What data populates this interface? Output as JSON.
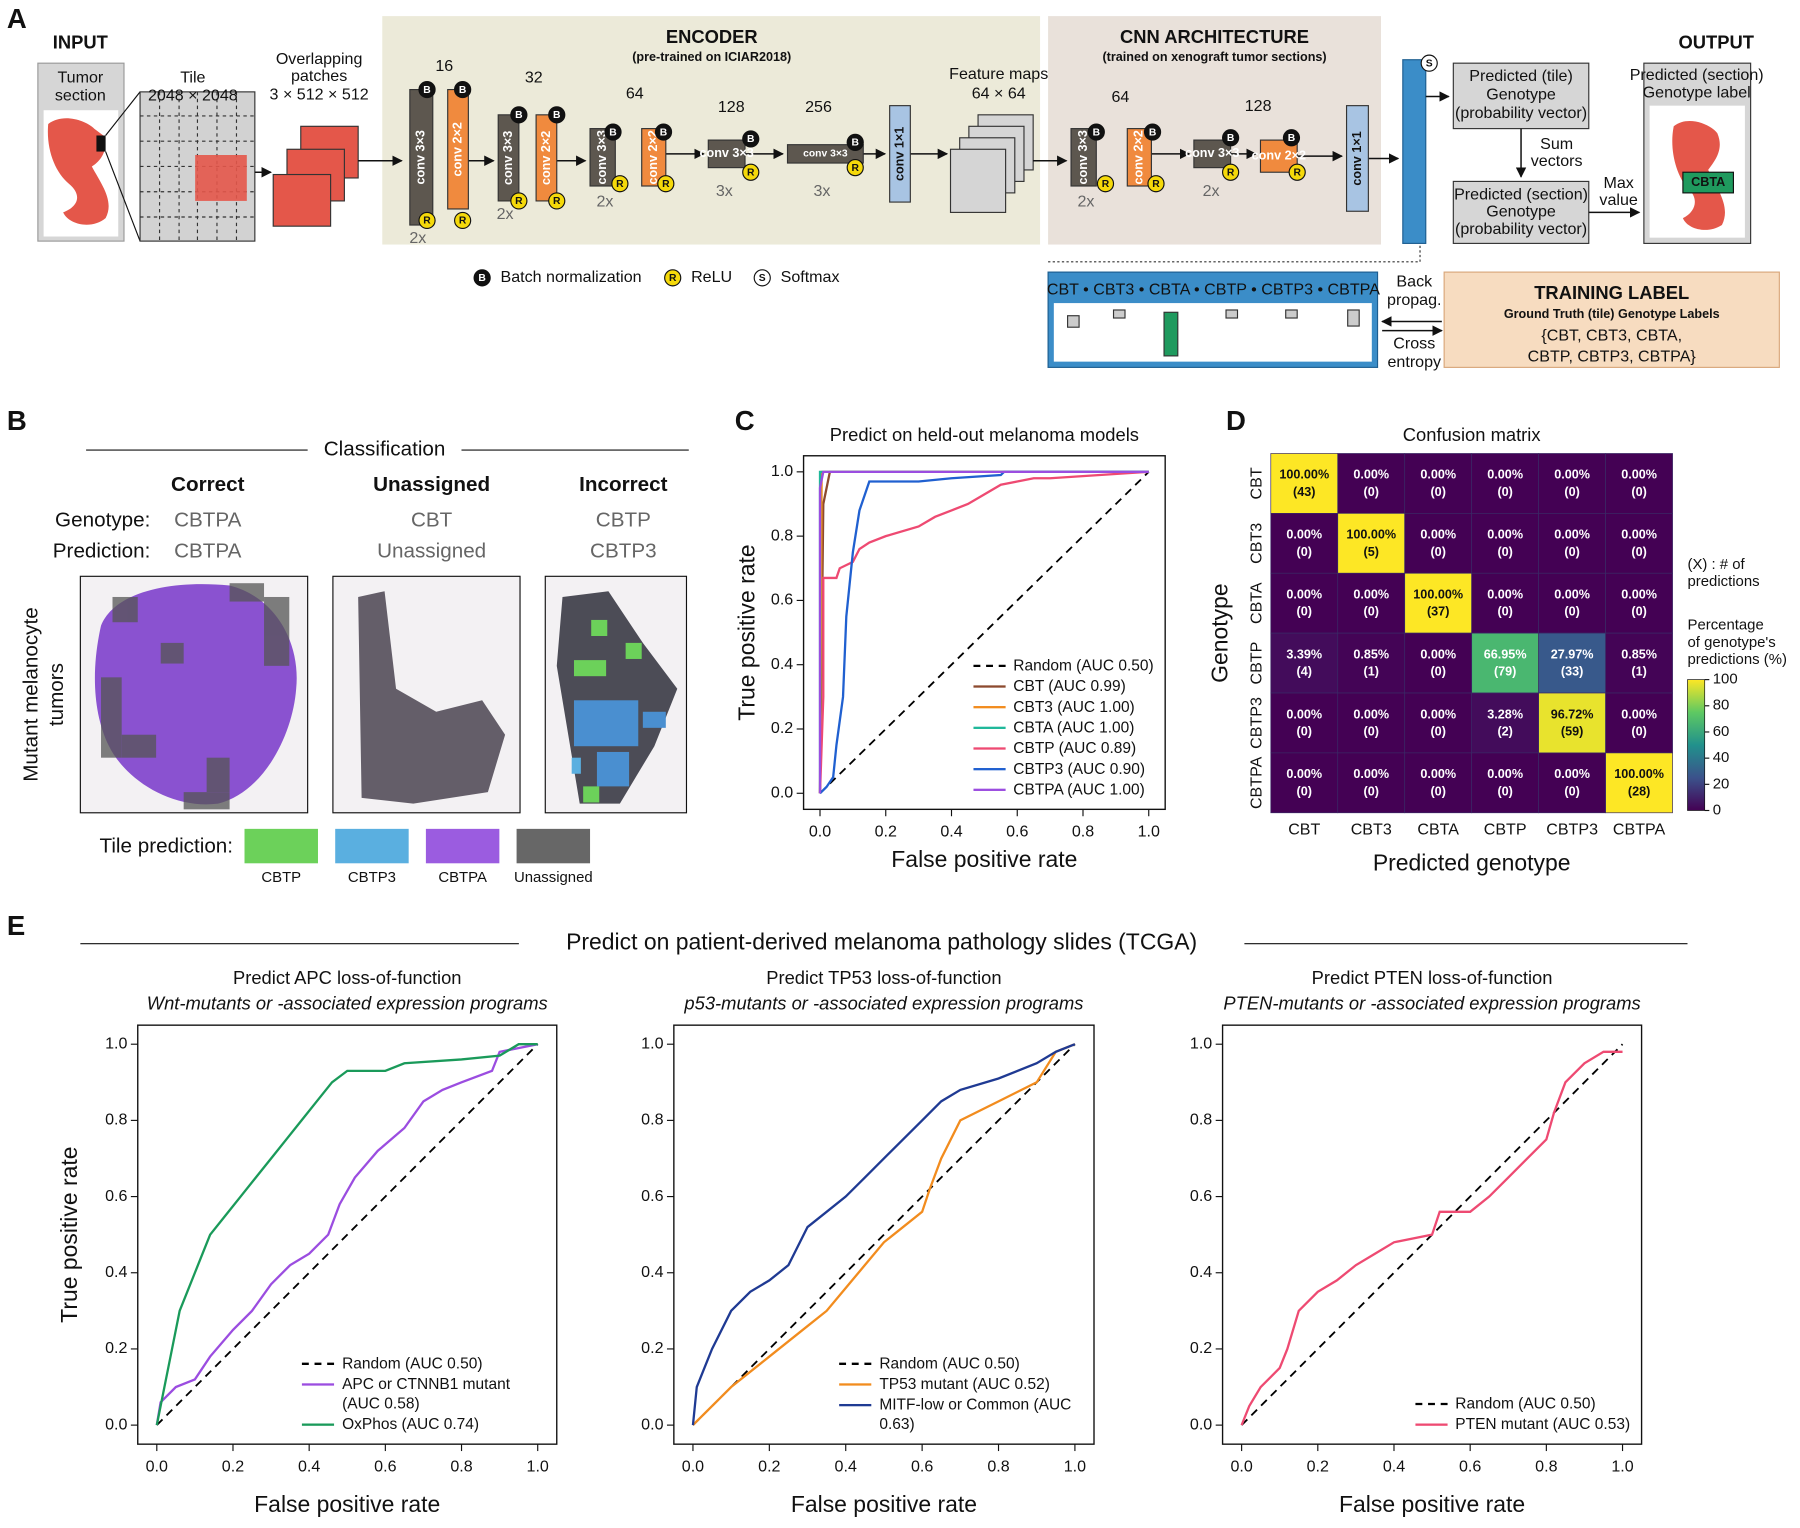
{
  "panel_a": {
    "label": "A",
    "input": "INPUT",
    "tumor_section": [
      "Tumor",
      "section"
    ],
    "tile": [
      "Tile",
      "2048 × 2048"
    ],
    "patches": [
      "Overlapping",
      "patches",
      "3 × 512 × 512"
    ],
    "encoder": {
      "title": "ENCODER",
      "subtitle": "(pre-trained on ICIAR2018)",
      "channels": [
        "16",
        "32",
        "64",
        "128",
        "256"
      ],
      "repeats": [
        "2x",
        "2x",
        "2x",
        "3x",
        "3x"
      ]
    },
    "conv3": "conv 3×3",
    "conv2": "conv 2×2",
    "conv1": "conv 1×1",
    "badges": {
      "b": "B",
      "r": "R",
      "s": "S"
    },
    "legend": [
      "Batch normalization",
      "ReLU",
      "Softmax"
    ],
    "feature_maps": [
      "Feature maps",
      "64 × 64"
    ],
    "cnn": {
      "title": "CNN ARCHITECTURE",
      "subtitle": "(trained on xenograft tumor sections)",
      "channels": [
        "64",
        "128"
      ],
      "repeats": [
        "2x",
        "2x"
      ]
    },
    "tile_prediction": [
      "Predicted (tile)",
      "Genotype",
      "(probability vector)"
    ],
    "sum_vectors": [
      "Sum",
      "vectors"
    ],
    "section_prediction": [
      "Predicted (section)",
      "Genotype",
      "(probability vector)"
    ],
    "max_value": [
      "Max",
      "value"
    ],
    "output": "OUTPUT",
    "output_label": [
      "Predicted (section)",
      "Genotype label"
    ],
    "output_tag": "CBTA",
    "vector_labels": "CBT • CBT3 • CBTA • CBTP • CBTP3 • CBTPA",
    "back_propagation": [
      "Back",
      "propag."
    ],
    "cross_entropy": [
      "Cross",
      "entropy"
    ],
    "training_label": {
      "title": "TRAINING LABEL",
      "subtitle": "Ground Truth (tile) Genotype Labels",
      "lines": [
        "{CBT, CBT3, CBTA,",
        "CBTP, CBTP3, CBTPA}"
      ]
    }
  },
  "panel_b": {
    "label": "B",
    "title": "Classification",
    "columns": [
      "Correct",
      "Unassigned",
      "Incorrect"
    ],
    "row_headers": [
      "Genotype:",
      "Prediction:"
    ],
    "genotypes": [
      "CBTPA",
      "CBT",
      "CBTP"
    ],
    "predictions": [
      "CBTPA",
      "Unassigned",
      "CBTP3"
    ],
    "row_label": [
      "Mutant melanocyte",
      "tumors"
    ],
    "legend_title": "Tile prediction:",
    "legend": [
      {
        "name": "CBTP",
        "color": "#6cd15a"
      },
      {
        "name": "CBTP3",
        "color": "#5aafe0"
      },
      {
        "name": "CBTPA",
        "color": "#9b5ce0"
      },
      {
        "name": "Unassigned",
        "color": "#676767"
      }
    ]
  },
  "panel_c": {
    "label": "C"
  },
  "panel_d": {
    "label": "D"
  },
  "panel_e": {
    "label": "E",
    "title": "Predict on patient-derived melanoma pathology slides (TCGA)"
  },
  "chart_data": [
    {
      "type": "line",
      "title": "Predict on held-out melanoma models",
      "xlabel": "False positive rate",
      "ylabel": "True positive rate",
      "xlim": [
        -0.05,
        1.05
      ],
      "ylim": [
        -0.05,
        1.05
      ],
      "xticks": [
        {
          "value": 0,
          "label": "0.0"
        },
        0.2,
        0.4,
        0.6,
        0.8,
        {
          "value": 1,
          "label": "1.0"
        }
      ],
      "yticks": [
        {
          "value": 0,
          "label": "0.0"
        },
        0.2,
        0.4,
        0.6,
        0.8,
        {
          "value": 1,
          "label": "1.0"
        }
      ],
      "legend": "lower right",
      "series": [
        {
          "name": "Random (AUC 0.50)",
          "color": "#000000",
          "dash": true,
          "x": [
            0,
            1
          ],
          "values": [
            0,
            1
          ]
        },
        {
          "name": "CBT (AUC 0.99)",
          "color": "#8c4a2f",
          "x": [
            0,
            0.01,
            0.03,
            1
          ],
          "values": [
            0,
            0.9,
            1,
            1
          ]
        },
        {
          "name": "CBT3 (AUC 1.00)",
          "color": "#f28c1e",
          "x": [
            0,
            0.005,
            1
          ],
          "values": [
            0,
            1,
            1
          ]
        },
        {
          "name": "CBTA (AUC 1.00)",
          "color": "#1fb89a",
          "x": [
            0,
            0,
            1
          ],
          "values": [
            0,
            1,
            1
          ]
        },
        {
          "name": "CBTP (AUC 0.89)",
          "color": "#ee4a72",
          "x": [
            0,
            0.01,
            0.01,
            0.05,
            0.06,
            0.1,
            0.12,
            0.15,
            0.2,
            0.3,
            0.35,
            0.4,
            0.45,
            0.5,
            0.55,
            0.6,
            0.65,
            0.7,
            1
          ],
          "values": [
            0,
            0.3,
            0.67,
            0.67,
            0.7,
            0.72,
            0.76,
            0.78,
            0.8,
            0.83,
            0.86,
            0.88,
            0.9,
            0.93,
            0.96,
            0.97,
            0.98,
            0.98,
            1
          ]
        },
        {
          "name": "CBTP3 (AUC 0.90)",
          "color": "#2060d0",
          "x": [
            0,
            0.02,
            0.04,
            0.05,
            0.07,
            0.08,
            0.09,
            0.1,
            0.12,
            0.15,
            0.3,
            0.4,
            0.55,
            0.56,
            1
          ],
          "values": [
            0,
            0.02,
            0.05,
            0.15,
            0.3,
            0.55,
            0.65,
            0.75,
            0.88,
            0.97,
            0.97,
            0.98,
            0.99,
            1,
            1
          ]
        },
        {
          "name": "CBTPA (AUC 1.00)",
          "color": "#9b4de0",
          "x": [
            0,
            0,
            0.01,
            1
          ],
          "values": [
            0,
            0.95,
            1,
            1
          ]
        }
      ]
    },
    {
      "type": "heatmap",
      "title": "Confusion matrix",
      "xlabel": "Predicted genotype",
      "ylabel": "Genotype",
      "x_categories": [
        "CBT",
        "CBT3",
        "CBTA",
        "CBTP",
        "CBTP3",
        "CBTPA"
      ],
      "y_categories": [
        "CBT",
        "CBT3",
        "CBTA",
        "CBTP",
        "CBTP3",
        "CBTPA"
      ],
      "values": [
        [
          100,
          0,
          0,
          0,
          0,
          0
        ],
        [
          0,
          100,
          0,
          0,
          0,
          0
        ],
        [
          0,
          0,
          100,
          0,
          0,
          0
        ],
        [
          3.39,
          0.85,
          0,
          66.95,
          27.97,
          0.85
        ],
        [
          0,
          0,
          0,
          3.28,
          96.72,
          0
        ],
        [
          0,
          0,
          0,
          0,
          0,
          100
        ]
      ],
      "value_labels": [
        [
          "100.00%",
          "0.00%",
          "0.00%",
          "0.00%",
          "0.00%",
          "0.00%"
        ],
        [
          "0.00%",
          "100.00%",
          "0.00%",
          "0.00%",
          "0.00%",
          "0.00%"
        ],
        [
          "0.00%",
          "0.00%",
          "100.00%",
          "0.00%",
          "0.00%",
          "0.00%"
        ],
        [
          "3.39%",
          "0.85%",
          "0.00%",
          "66.95%",
          "27.97%",
          "0.85%"
        ],
        [
          "0.00%",
          "0.00%",
          "0.00%",
          "3.28%",
          "96.72%",
          "0.00%"
        ],
        [
          "0.00%",
          "0.00%",
          "0.00%",
          "0.00%",
          "0.00%",
          "100.00%"
        ]
      ],
      "counts": [
        [
          43,
          0,
          0,
          0,
          0,
          0
        ],
        [
          0,
          5,
          0,
          0,
          0,
          0
        ],
        [
          0,
          0,
          37,
          0,
          0,
          0
        ],
        [
          4,
          1,
          0,
          79,
          33,
          1
        ],
        [
          0,
          0,
          0,
          2,
          59,
          0
        ],
        [
          0,
          0,
          0,
          0,
          0,
          28
        ]
      ],
      "count_labels": [
        [
          "(43)",
          "(0)",
          "(0)",
          "(0)",
          "(0)",
          "(0)"
        ],
        [
          "(0)",
          "(5)",
          "(0)",
          "(0)",
          "(0)",
          "(0)"
        ],
        [
          "(0)",
          "(0)",
          "(37)",
          "(0)",
          "(0)",
          "(0)"
        ],
        [
          "(4)",
          "(1)",
          "(0)",
          "(79)",
          "(33)",
          "(1)"
        ],
        [
          "(0)",
          "(0)",
          "(0)",
          "(2)",
          "(59)",
          "(0)"
        ],
        [
          "(0)",
          "(0)",
          "(0)",
          "(0)",
          "(0)",
          "(28)"
        ]
      ],
      "clim": [
        0,
        100
      ],
      "cticks": [
        0,
        20,
        40,
        60,
        80,
        100
      ],
      "colormap": "viridis",
      "annotations": [
        "(X) : # of",
        "predictions"
      ],
      "colorbar_label": [
        "Percentage",
        "of genotype's",
        "predictions (%)"
      ]
    },
    {
      "type": "line",
      "title": "Predict APC loss-of-function",
      "subtitle": "Wnt-mutants or -associated expression programs",
      "xlabel": "False positive rate",
      "ylabel": "True positive rate",
      "xlim": [
        -0.05,
        1.05
      ],
      "ylim": [
        -0.05,
        1.05
      ],
      "xticks": [
        {
          "value": 0,
          "label": "0.0"
        },
        0.2,
        0.4,
        0.6,
        0.8,
        {
          "value": 1,
          "label": "1.0"
        }
      ],
      "yticks": [
        {
          "value": 0,
          "label": "0.0"
        },
        0.2,
        0.4,
        0.6,
        0.8,
        {
          "value": 1,
          "label": "1.0"
        }
      ],
      "legend": "lower right",
      "series": [
        {
          "name": "Random (AUC 0.50)",
          "color": "#000000",
          "dash": true,
          "x": [
            0,
            1
          ],
          "values": [
            0,
            1
          ]
        },
        {
          "name": "APC or CTNNB1 mutant (AUC 0.58)",
          "color": "#9b4de0",
          "x": [
            0,
            0.01,
            0.05,
            0.1,
            0.14,
            0.2,
            0.25,
            0.3,
            0.35,
            0.4,
            0.45,
            0.48,
            0.52,
            0.58,
            0.65,
            0.7,
            0.75,
            0.8,
            0.88,
            0.9,
            1
          ],
          "values": [
            0,
            0.06,
            0.1,
            0.12,
            0.18,
            0.25,
            0.3,
            0.37,
            0.42,
            0.45,
            0.5,
            0.58,
            0.65,
            0.72,
            0.78,
            0.85,
            0.88,
            0.9,
            0.93,
            0.98,
            1
          ]
        },
        {
          "name": "OxPhos (AUC 0.74)",
          "color": "#1a9a5a",
          "x": [
            0,
            0.01,
            0.02,
            0.04,
            0.06,
            0.08,
            0.1,
            0.12,
            0.14,
            0.18,
            0.22,
            0.26,
            0.3,
            0.34,
            0.38,
            0.42,
            0.46,
            0.5,
            0.6,
            0.65,
            0.8,
            0.9,
            0.95,
            1
          ],
          "values": [
            0,
            0.05,
            0.1,
            0.2,
            0.3,
            0.35,
            0.4,
            0.45,
            0.5,
            0.55,
            0.6,
            0.65,
            0.7,
            0.75,
            0.8,
            0.85,
            0.9,
            0.93,
            0.93,
            0.95,
            0.96,
            0.97,
            1,
            1
          ]
        }
      ]
    },
    {
      "type": "line",
      "title": "Predict TP53 loss-of-function",
      "subtitle": "p53-mutants or -associated expression programs",
      "xlabel": "False positive rate",
      "xlim": [
        -0.05,
        1.05
      ],
      "ylim": [
        -0.05,
        1.05
      ],
      "xticks": [
        {
          "value": 0,
          "label": "0.0"
        },
        0.2,
        0.4,
        0.6,
        0.8,
        {
          "value": 1,
          "label": "1.0"
        }
      ],
      "yticks": [
        {
          "value": 0,
          "label": "0.0"
        },
        0.2,
        0.4,
        0.6,
        0.8,
        {
          "value": 1,
          "label": "1.0"
        }
      ],
      "legend": "lower right",
      "series": [
        {
          "name": "Random (AUC 0.50)",
          "color": "#000000",
          "dash": true,
          "x": [
            0,
            1
          ],
          "values": [
            0,
            1
          ]
        },
        {
          "name": "TP53 mutant (AUC 0.52)",
          "color": "#f28c1e",
          "x": [
            0,
            0.05,
            0.1,
            0.2,
            0.25,
            0.3,
            0.35,
            0.4,
            0.45,
            0.5,
            0.55,
            0.6,
            0.62,
            0.65,
            0.7,
            0.8,
            0.9,
            0.95,
            1
          ],
          "values": [
            0,
            0.05,
            0.1,
            0.18,
            0.22,
            0.26,
            0.3,
            0.36,
            0.42,
            0.48,
            0.52,
            0.56,
            0.62,
            0.7,
            0.8,
            0.85,
            0.9,
            0.98,
            1
          ]
        },
        {
          "name": "MITF-low or Common (AUC 0.63)",
          "color": "#1f3a93",
          "x": [
            0,
            0.01,
            0.03,
            0.05,
            0.1,
            0.15,
            0.2,
            0.25,
            0.28,
            0.3,
            0.35,
            0.4,
            0.45,
            0.5,
            0.55,
            0.6,
            0.65,
            0.7,
            0.8,
            0.9,
            0.95,
            1
          ],
          "values": [
            0,
            0.1,
            0.15,
            0.2,
            0.3,
            0.35,
            0.38,
            0.42,
            0.48,
            0.52,
            0.56,
            0.6,
            0.65,
            0.7,
            0.75,
            0.8,
            0.85,
            0.88,
            0.91,
            0.95,
            0.98,
            1
          ]
        }
      ]
    },
    {
      "type": "line",
      "title": "Predict PTEN loss-of-function",
      "subtitle": "PTEN-mutants or -associated expression programs",
      "xlabel": "False positive rate",
      "xlim": [
        -0.05,
        1.05
      ],
      "ylim": [
        -0.05,
        1.05
      ],
      "xticks": [
        {
          "value": 0,
          "label": "0.0"
        },
        0.2,
        0.4,
        0.6,
        0.8,
        {
          "value": 1,
          "label": "1.0"
        }
      ],
      "yticks": [
        {
          "value": 0,
          "label": "0.0"
        },
        0.2,
        0.4,
        0.6,
        0.8,
        {
          "value": 1,
          "label": "1.0"
        }
      ],
      "legend": "lower right",
      "series": [
        {
          "name": "Random (AUC 0.50)",
          "color": "#000000",
          "dash": true,
          "x": [
            0,
            1
          ],
          "values": [
            0,
            1
          ]
        },
        {
          "name": "PTEN mutant (AUC 0.53)",
          "color": "#ee4a72",
          "x": [
            0,
            0.02,
            0.05,
            0.1,
            0.12,
            0.15,
            0.2,
            0.25,
            0.3,
            0.35,
            0.4,
            0.5,
            0.52,
            0.6,
            0.65,
            0.7,
            0.75,
            0.8,
            0.82,
            0.85,
            0.9,
            0.95,
            1
          ],
          "values": [
            0,
            0.05,
            0.1,
            0.15,
            0.2,
            0.3,
            0.35,
            0.38,
            0.42,
            0.45,
            0.48,
            0.5,
            0.56,
            0.56,
            0.6,
            0.65,
            0.7,
            0.75,
            0.82,
            0.9,
            0.95,
            0.98,
            0.98
          ]
        }
      ]
    }
  ]
}
